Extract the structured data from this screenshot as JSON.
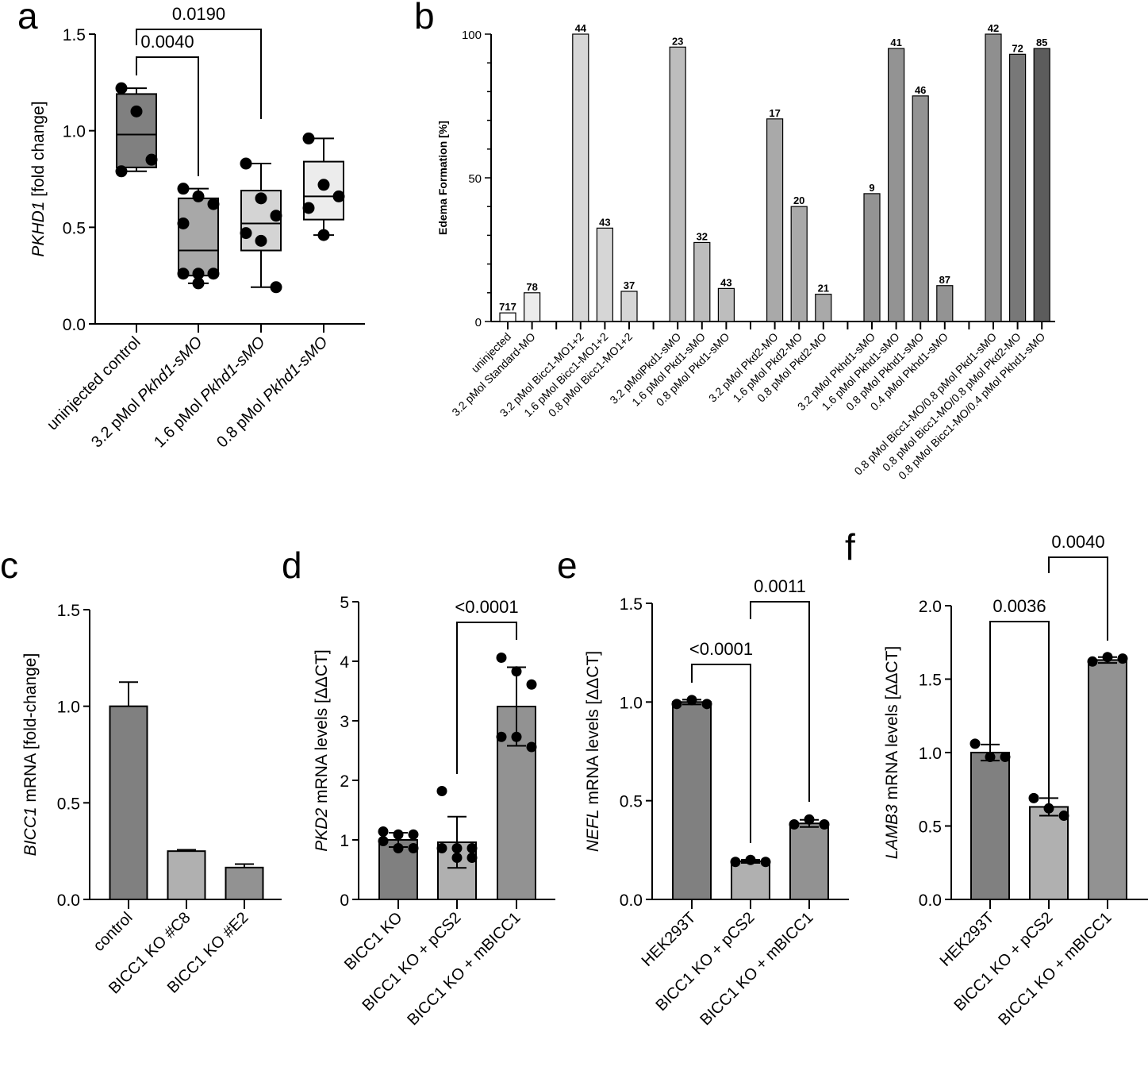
{
  "chart_data": [
    {
      "panel": "a",
      "type": "box",
      "ylabel_italic": "PKHD1",
      "ylabel_rest": " [fold change]",
      "ylim": [
        0,
        1.5
      ],
      "yticks": [
        "0.0",
        "0.5",
        "1.0",
        "1.5"
      ],
      "ytick_values": [
        0,
        0.5,
        1.0,
        1.5
      ],
      "categories": [
        {
          "prefix": "",
          "italic": "",
          "text": "uninjected control"
        },
        {
          "prefix": "3.2 pMol ",
          "italic": "Pkhd1-sMO",
          "text": ""
        },
        {
          "prefix": "1.6 pMol ",
          "italic": "Pkhd1-sMO",
          "text": ""
        },
        {
          "prefix": "0.8 pMol ",
          "italic": "Pkhd1-sMO",
          "text": ""
        }
      ],
      "boxes": [
        {
          "min": 0.79,
          "q1": 0.81,
          "median": 0.98,
          "q3": 1.19,
          "max": 1.22,
          "points": [
            1.22,
            1.1,
            0.85,
            0.79
          ],
          "fill": "#808080"
        },
        {
          "min": 0.21,
          "q1": 0.25,
          "median": 0.38,
          "q3": 0.65,
          "max": 0.7,
          "points": [
            0.7,
            0.66,
            0.62,
            0.52,
            0.26,
            0.26,
            0.26,
            0.21
          ],
          "fill": "#a8a8a8"
        },
        {
          "min": 0.19,
          "q1": 0.38,
          "median": 0.52,
          "q3": 0.69,
          "max": 0.83,
          "points": [
            0.83,
            0.65,
            0.56,
            0.47,
            0.43,
            0.19
          ],
          "fill": "#d4d4d4"
        },
        {
          "min": 0.46,
          "q1": 0.54,
          "median": 0.66,
          "q3": 0.84,
          "max": 0.96,
          "points": [
            0.96,
            0.72,
            0.66,
            0.6,
            0.46
          ],
          "fill": "#ececec"
        }
      ],
      "comparisons": [
        {
          "from": 0,
          "to": 1,
          "label": "0.0040"
        },
        {
          "from": 0,
          "to": 2,
          "label": "0.0190"
        }
      ]
    },
    {
      "panel": "b",
      "type": "bar",
      "ylabel": "Edema Formation [%]",
      "ylim": [
        0,
        100
      ],
      "yticks": [
        "0",
        "50",
        "100"
      ],
      "ytick_values": [
        0,
        50,
        100
      ],
      "categories": [
        "uninjected",
        "3.2 pMol Standard-MO",
        "",
        "3.2 pMol Bicc1-MO1+2",
        "1.6 pMol Bicc1-MO1+2",
        "0.8 pMol Bicc1-MO1+2",
        "",
        "3.2 pMolPkd1-sMO",
        "1.6 pMol Pkd1-sMO",
        "0.8 pMol Pkd1-sMO",
        "",
        "3.2 pMol Pkd2-MO",
        "1.6 pMol Pkd2-MO",
        "0.8 pMol Pkd2-MO",
        "",
        "3.2 pMol Pkhd1-sMO",
        "1.6 pMol Pkhd1-sMO",
        "0.8 pMol Pkhd1-sMO",
        "0.4 pMol Pkhd1-sMO",
        "",
        "0.8 pMol Bicc1-MO/0.8 pMol Pkd1-sMO",
        "0.8 pMol Bicc1-MO/0.8 pMol Pkd2-MO",
        "0.8 pMol Bicc1-MO/0.4 pMol Pkhd1-sMO"
      ],
      "values": [
        3,
        10,
        null,
        100,
        32.5,
        10.5,
        null,
        95.5,
        27.5,
        11.5,
        null,
        70.5,
        40,
        9.5,
        null,
        44.5,
        95,
        78.5,
        12.5,
        null,
        100,
        93,
        95
      ],
      "n_labels": [
        "717",
        "78",
        "",
        "44",
        "43",
        "37",
        "",
        "23",
        "32",
        "43",
        "",
        "17",
        "20",
        "21",
        "",
        "9",
        "41",
        "46",
        "87",
        "",
        "42",
        "72",
        "85"
      ],
      "fills": [
        "#ffffff",
        "#ececec",
        "",
        "#d6d6d6",
        "#d6d6d6",
        "#d6d6d6",
        "",
        "#bdbdbd",
        "#bdbdbd",
        "#bdbdbd",
        "",
        "#a9a9a9",
        "#a9a9a9",
        "#a9a9a9",
        "",
        "#939393",
        "#939393",
        "#939393",
        "#939393",
        "",
        "#8f8f8f",
        "#787878",
        "#5c5c5c"
      ]
    },
    {
      "panel": "c",
      "type": "bar",
      "ylabel_italic": "BICC1",
      "ylabel_rest": " mRNA [fold-change]",
      "ylim": [
        0,
        1.5
      ],
      "yticks": [
        "0.0",
        "0.5",
        "1.0",
        "1.5"
      ],
      "ytick_values": [
        0,
        0.5,
        1.0,
        1.5
      ],
      "categories": [
        "control",
        "BICC1 KO #C8",
        "BICC1 KO #E2"
      ],
      "values": [
        1.0,
        0.25,
        0.165
      ],
      "errors": [
        0.125,
        0.007,
        0.018
      ],
      "fills": [
        "#808080",
        "#b0b0b0",
        "#929292"
      ],
      "points": [
        [],
        [],
        []
      ],
      "comparisons": []
    },
    {
      "panel": "d",
      "type": "bar",
      "ylabel_italic": "PKD2",
      "ylabel_rest": " mRNA levels [ΔΔCT]",
      "ylim": [
        0,
        5
      ],
      "yticks": [
        "0",
        "1",
        "2",
        "3",
        "4",
        "5"
      ],
      "ytick_values": [
        0,
        1,
        2,
        3,
        4,
        5
      ],
      "categories": [
        "BICC1 KO",
        "BICC1 KO + pCS2",
        "BICC1 KO + mBICC1"
      ],
      "values": [
        1.0,
        0.96,
        3.24
      ],
      "errors": [
        0.12,
        0.43,
        0.66
      ],
      "fills": [
        "#808080",
        "#b0b0b0",
        "#929292"
      ],
      "points": [
        [
          1.14,
          1.09,
          1.09,
          0.98,
          0.86,
          0.86
        ],
        [
          1.82,
          0.86,
          0.86,
          0.86,
          0.7,
          0.7
        ],
        [
          4.06,
          3.83,
          3.61,
          2.73,
          2.73,
          2.56
        ]
      ],
      "comparisons": [
        {
          "from": 1,
          "to": 2,
          "label": "<0.0001"
        }
      ]
    },
    {
      "panel": "e",
      "type": "bar",
      "ylabel_italic": "NEFL",
      "ylabel_rest": " mRNA levels [ΔΔCT]",
      "ylim": [
        0,
        1.5
      ],
      "yticks": [
        "0.0",
        "0.5",
        "1.0",
        "1.5"
      ],
      "ytick_values": [
        0,
        0.5,
        1.0,
        1.5
      ],
      "categories": [
        "HEK293T",
        "BICC1 KO + pCS2",
        "BICC1 KO + mBICC1"
      ],
      "values": [
        1.0,
        0.193,
        0.385
      ],
      "errors": [
        0.012,
        0.008,
        0.018
      ],
      "fills": [
        "#808080",
        "#b0b0b0",
        "#929292"
      ],
      "points": [
        [
          0.99,
          1.01,
          0.99
        ],
        [
          0.19,
          0.2,
          0.19
        ],
        [
          0.38,
          0.405,
          0.38
        ]
      ],
      "comparisons": [
        {
          "from": 0,
          "to": 1,
          "label": "<0.0001"
        },
        {
          "from": 1,
          "to": 2,
          "label": "0.0011"
        }
      ]
    },
    {
      "panel": "f",
      "type": "bar",
      "ylabel_italic": "LAMB3",
      "ylabel_rest": " mRNA levels [ΔΔCT]",
      "ylim": [
        0,
        2.0
      ],
      "yticks": [
        "0.0",
        "0.5",
        "1.0",
        "1.5",
        "2.0"
      ],
      "ytick_values": [
        0,
        0.5,
        1.0,
        1.5,
        2.0
      ],
      "categories": [
        "HEK293T",
        "BICC1 KO + pCS2",
        "BICC1 KO + mBICC1"
      ],
      "values": [
        1.0,
        0.63,
        1.63
      ],
      "errors": [
        0.055,
        0.06,
        0.02
      ],
      "fills": [
        "#808080",
        "#b0b0b0",
        "#929292"
      ],
      "points": [
        [
          1.06,
          0.97,
          0.97
        ],
        [
          0.69,
          0.62,
          0.57
        ],
        [
          1.62,
          1.65,
          1.64
        ]
      ],
      "comparisons": [
        {
          "from": 0,
          "to": 1,
          "label": "0.0036"
        },
        {
          "from": 1,
          "to": 2,
          "label": "0.0040"
        }
      ]
    }
  ],
  "panel_letters": [
    "a",
    "b",
    "c",
    "d",
    "e",
    "f"
  ]
}
